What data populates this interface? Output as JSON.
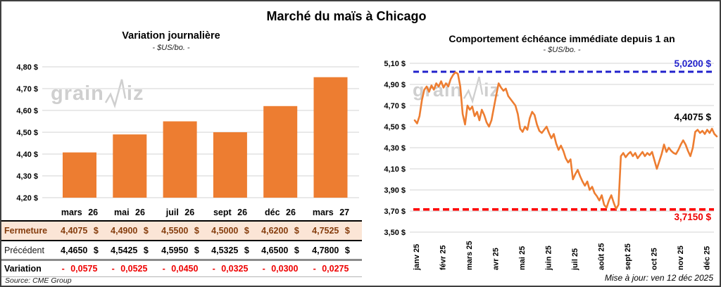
{
  "page": {
    "title": "Marché du maïs à Chicago",
    "source": "Source: CME Group",
    "updated": "Mise à jour: ven 12 déc 2025"
  },
  "colors": {
    "bar": "#ED7D31",
    "line": "#ED7D31",
    "grid": "#DCDCDC",
    "high_line": "#2222CC",
    "low_line": "#FF0000",
    "fermeture_bg": "#FBE5D6",
    "fermeture_text": "#843C0C",
    "variation_text": "#EE0000",
    "watermark": "#CFCFCF"
  },
  "watermark": {
    "part1": "grain",
    "part2": "iz"
  },
  "chart_data": [
    {
      "type": "bar",
      "title": "Variation journalière",
      "subtitle": "- $US/bo. -",
      "categories": [
        "mars 26",
        "mai 26",
        "juil 26",
        "sept 26",
        "déc 26",
        "mars 27"
      ],
      "values": [
        4.4075,
        4.49,
        4.55,
        4.5,
        4.62,
        4.7525
      ],
      "ylim": [
        4.2,
        4.8
      ],
      "ytick_labels": [
        "4,80 $",
        "4,70 $",
        "4,60 $",
        "4,50 $",
        "4,40 $",
        "4,30 $",
        "4,20 $"
      ],
      "grid": true,
      "legend": "none"
    },
    {
      "type": "line",
      "title": "Comportement échéance immédiate depuis 1 an",
      "subtitle": "- $US/bo. -",
      "x_labels": [
        "janv 25",
        "févr 25",
        "mars 25",
        "avr 25",
        "mai 25",
        "juin 25",
        "juil 25",
        "août 25",
        "sept 25",
        "oct 25",
        "nov 25",
        "déc 25"
      ],
      "ylim": [
        3.5,
        5.1
      ],
      "ytick_labels": [
        "5,10 $",
        "4,90 $",
        "4,70 $",
        "4,50 $",
        "4,30 $",
        "4,10 $",
        "3,90 $",
        "3,70 $",
        "3,50 $"
      ],
      "high_line": {
        "value": 5.02,
        "label": "5,0200 $"
      },
      "low_line": {
        "value": 3.715,
        "label": "3,7150 $"
      },
      "last_value": 4.4075,
      "last_label": "4,4075 $",
      "grid": true,
      "legend": "none",
      "values": [
        4.56,
        4.53,
        4.6,
        4.75,
        4.85,
        4.88,
        4.83,
        4.89,
        4.85,
        4.91,
        4.88,
        4.93,
        4.87,
        4.91,
        4.88,
        4.95,
        4.99,
        5.015,
        5.0,
        4.88,
        4.62,
        4.52,
        4.7,
        4.66,
        4.69,
        4.6,
        4.64,
        4.56,
        4.66,
        4.61,
        4.54,
        4.5,
        4.56,
        4.68,
        4.8,
        4.91,
        4.87,
        4.84,
        4.86,
        4.79,
        4.76,
        4.73,
        4.7,
        4.62,
        4.48,
        4.45,
        4.5,
        4.47,
        4.58,
        4.64,
        4.61,
        4.52,
        4.46,
        4.44,
        4.47,
        4.5,
        4.44,
        4.39,
        4.43,
        4.34,
        4.28,
        4.32,
        4.27,
        4.2,
        4.16,
        4.19,
        4.0,
        4.05,
        4.09,
        4.03,
        3.98,
        3.94,
        3.98,
        3.9,
        3.93,
        3.87,
        3.84,
        3.8,
        3.85,
        3.76,
        3.73,
        3.8,
        3.85,
        3.78,
        3.72,
        3.76,
        4.22,
        4.25,
        4.21,
        4.24,
        4.26,
        4.22,
        4.25,
        4.2,
        4.23,
        4.26,
        4.22,
        4.25,
        4.23,
        4.26,
        4.18,
        4.1,
        4.17,
        4.24,
        4.33,
        4.26,
        4.3,
        4.27,
        4.25,
        4.24,
        4.28,
        4.33,
        4.37,
        4.33,
        4.27,
        4.22,
        4.3,
        4.45,
        4.47,
        4.44,
        4.46,
        4.43,
        4.47,
        4.44,
        4.48,
        4.43,
        4.4075
      ]
    }
  ],
  "table": {
    "columns": [
      "mars 26",
      "mai 26",
      "juil 26",
      "sept 26",
      "déc 26",
      "mars 27"
    ],
    "rows": [
      {
        "label": "Fermeture",
        "values": [
          "4,4075 $",
          "4,4900 $",
          "4,5500 $",
          "4,5000 $",
          "4,6200 $",
          "4,7525 $"
        ]
      },
      {
        "label": "Précédent",
        "values": [
          "4,4650 $",
          "4,5425 $",
          "4,5950 $",
          "4,5325 $",
          "4,6500 $",
          "4,7800 $"
        ]
      },
      {
        "label": "Variation",
        "values": [
          "- 0,0575",
          "- 0,0525",
          "- 0,0450",
          "- 0,0325",
          "- 0,0300",
          "- 0,0275"
        ]
      }
    ]
  }
}
